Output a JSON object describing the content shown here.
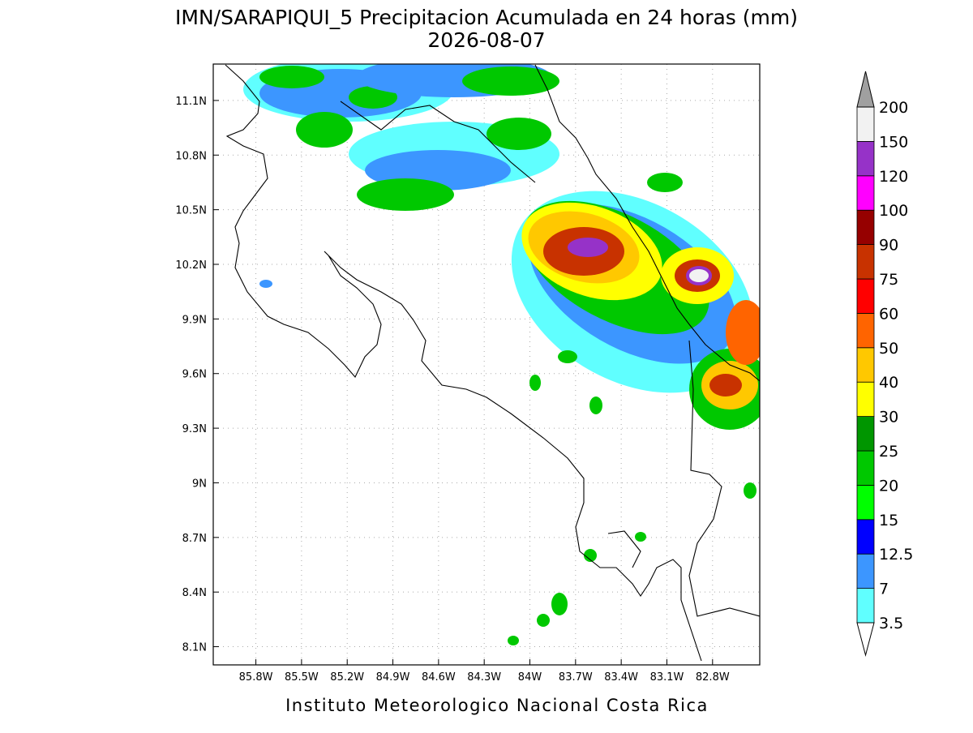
{
  "title": "IMN/SARAPIQUI_5 Precipitacion Acumulada en 24 horas (mm)",
  "date": "2026-08-07",
  "map": {
    "lonlim": [
      -86.08,
      -82.49
    ],
    "latlim": [
      8.0,
      11.3
    ],
    "lon_ticks": [
      {
        "value": -85.8,
        "label": "85.8W"
      },
      {
        "value": -85.5,
        "label": "85.5W"
      },
      {
        "value": -85.2,
        "label": "85.2W"
      },
      {
        "value": -84.9,
        "label": "84.9W"
      },
      {
        "value": -84.6,
        "label": "84.6W"
      },
      {
        "value": -84.3,
        "label": "84.3W"
      },
      {
        "value": -84.0,
        "label": "84W"
      },
      {
        "value": -83.7,
        "label": "83.7W"
      },
      {
        "value": -83.4,
        "label": "83.4W"
      },
      {
        "value": -83.1,
        "label": "83.1W"
      },
      {
        "value": -82.8,
        "label": "82.8W"
      }
    ],
    "lat_ticks": [
      {
        "value": 11.1,
        "label": "11.1N"
      },
      {
        "value": 10.8,
        "label": "10.8N"
      },
      {
        "value": 10.5,
        "label": "10.5N"
      },
      {
        "value": 10.2,
        "label": "10.2N"
      },
      {
        "value": 9.9,
        "label": "9.9N"
      },
      {
        "value": 9.6,
        "label": "9.6N"
      },
      {
        "value": 9.3,
        "label": "9.3N"
      },
      {
        "value": 9.0,
        "label": "9N"
      },
      {
        "value": 8.7,
        "label": "8.7N"
      },
      {
        "value": 8.4,
        "label": "8.4N"
      },
      {
        "value": 8.1,
        "label": "8.1N"
      }
    ],
    "grid": true
  },
  "colorbar": {
    "levels": [
      3.5,
      7,
      12.5,
      15,
      20,
      25,
      30,
      40,
      50,
      60,
      75,
      90,
      100,
      120,
      150,
      200
    ],
    "colors": [
      "#60ffff",
      "#3c96ff",
      "#0000ff",
      "#00ff00",
      "#00c800",
      "#009600",
      "#ffff00",
      "#ffc800",
      "#ff6400",
      "#ff0000",
      "#c83200",
      "#960000",
      "#ff00ff",
      "#9632c8",
      "#f2f2f2"
    ],
    "under_color": "#ffffff",
    "over_color": "#a0a0a0"
  },
  "footer": "Instituto Meteorologico Nacional Costa Rica"
}
